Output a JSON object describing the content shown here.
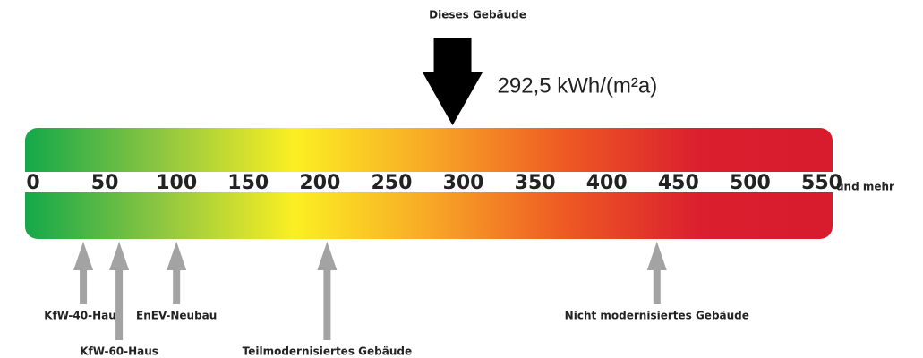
{
  "chart_data": {
    "type": "energy-scale",
    "title": "Dieses Gebäude",
    "value": 292.5,
    "value_label": "292,5 kWh/(m²a)",
    "xlim": [
      0,
      550
    ],
    "xticks": [
      0,
      50,
      100,
      150,
      200,
      250,
      300,
      350,
      400,
      450,
      500,
      550
    ],
    "tick_suffix": "und mehr",
    "colors": [
      "#13a84a",
      "#8dc641",
      "#fbef23",
      "#f8a926",
      "#ee5a24",
      "#db1f2e",
      "#d81b2d"
    ],
    "marker_color": "#000000",
    "reference_color": "#a3a3a3",
    "references": [
      {
        "label": "KfW-40-Haus",
        "value": 35
      },
      {
        "label": "KfW-60-Haus",
        "value": 60
      },
      {
        "label": "EnEV-Neubau",
        "value": 100
      },
      {
        "label": "Teilmodernisiertes Gebäude",
        "value": 205
      },
      {
        "label": "Nicht modernisiertes Gebäude",
        "value": 435
      }
    ]
  }
}
